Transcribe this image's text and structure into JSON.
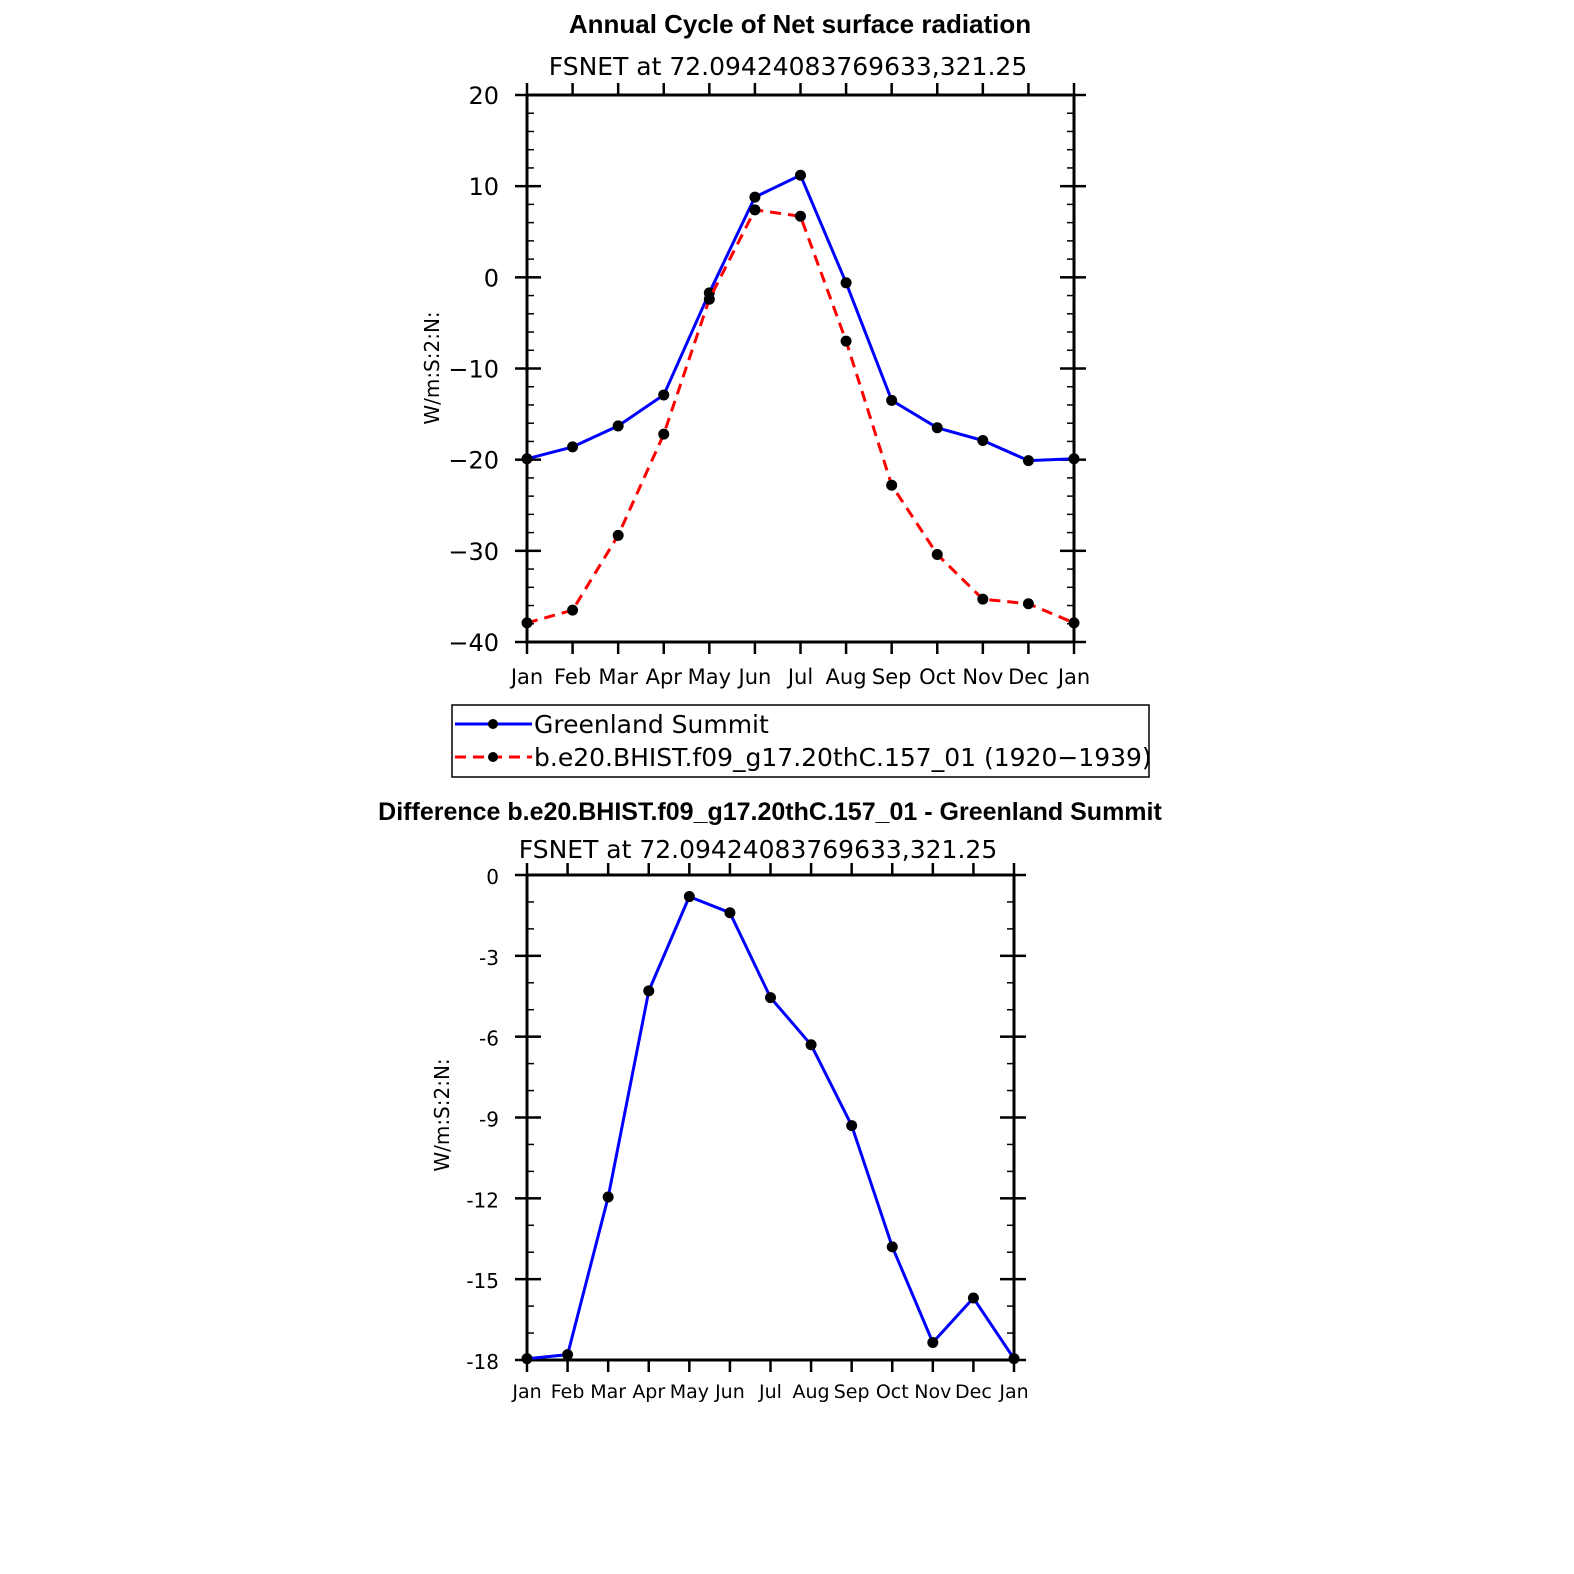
{
  "chart_data": [
    {
      "type": "line",
      "title": "Annual Cycle of Net surface radiation",
      "subtitle": "FSNET at 72.09424083769633,321.25",
      "ylabel": "W/m:S:2:N:",
      "xlabel": "",
      "categories": [
        "Jan",
        "Feb",
        "Mar",
        "Apr",
        "May",
        "Jun",
        "Jul",
        "Aug",
        "Sep",
        "Oct",
        "Nov",
        "Dec",
        "Jan"
      ],
      "ylim": [
        -40,
        20
      ],
      "yticks": [
        -40,
        -30,
        -20,
        -10,
        0,
        10,
        20
      ],
      "ytick_labels": [
        "−40",
        "−30",
        "−20",
        "−10",
        "0",
        "10",
        "20"
      ],
      "legend_position": "below",
      "series": [
        {
          "name": "Greenland Summit",
          "color": "#0000ff",
          "dash": "solid",
          "values": [
            -19.9,
            -18.6,
            -16.3,
            -12.9,
            -1.7,
            8.8,
            11.2,
            -0.6,
            -13.5,
            -16.5,
            -17.9,
            -20.1,
            -19.9
          ]
        },
        {
          "name": "b.e20.BHIST.f09_g17.20thC.157_01 (1920−1939)",
          "color": "#ff0000",
          "dash": "dashed",
          "values": [
            -37.9,
            -36.5,
            -28.3,
            -17.2,
            -2.4,
            7.4,
            6.7,
            -7.0,
            -22.8,
            -30.4,
            -35.3,
            -35.8,
            -37.9
          ]
        }
      ]
    },
    {
      "type": "line",
      "title": "Difference b.e20.BHIST.f09_g17.20thC.157_01 - Greenland Summit",
      "subtitle": "FSNET at 72.09424083769633,321.25",
      "ylabel": "W/m:S:2:N:",
      "xlabel": "",
      "categories": [
        "Jan",
        "Feb",
        "Mar",
        "Apr",
        "May",
        "Jun",
        "Jul",
        "Aug",
        "Sep",
        "Oct",
        "Nov",
        "Dec",
        "Jan"
      ],
      "ylim": [
        -18,
        0
      ],
      "yticks": [
        -18,
        -15,
        -12,
        -9,
        -6,
        -3,
        0
      ],
      "ytick_labels": [
        "-18",
        "-15",
        "-12",
        "-9",
        "-6",
        "-3",
        "0"
      ],
      "series": [
        {
          "color": "#0000ff",
          "dash": "solid",
          "values": [
            -17.95,
            -17.8,
            -11.95,
            -4.3,
            -0.8,
            -1.4,
            -4.55,
            -6.3,
            -9.3,
            -13.8,
            -17.35,
            -15.7,
            -17.95
          ]
        }
      ]
    }
  ]
}
